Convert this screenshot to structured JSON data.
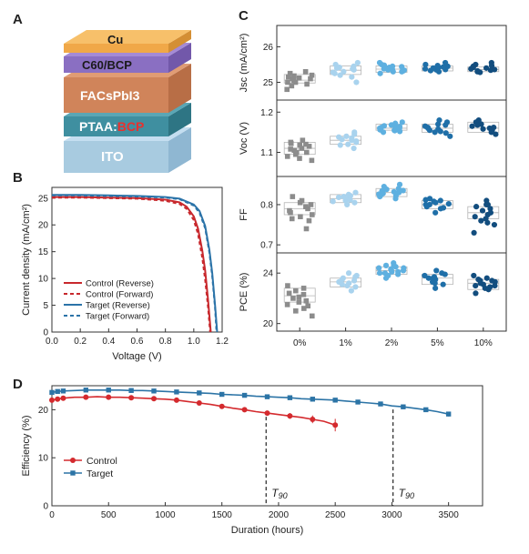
{
  "panels": {
    "a": "A",
    "b": "B",
    "c": "C",
    "d": "D"
  },
  "stack": {
    "layers": [
      "Cu",
      "C60/BCP",
      "FACsPbI3",
      "PTAA:",
      "BCP",
      "ITO"
    ],
    "colors": {
      "cu": "#f0a848",
      "c60": "#8a6fc2",
      "perov": "#d0845a",
      "ptaa": "#3f8fa0",
      "ito": "#a8cbe0"
    }
  },
  "chart_data": [
    {
      "type": "line",
      "panel": "B",
      "xlabel": "Voltage (V)",
      "ylabel": "Current density (mA/cm²)",
      "xlim": [
        0,
        1.2
      ],
      "ylim": [
        0,
        27
      ],
      "xticks": [
        "0.0",
        "0.2",
        "0.4",
        "0.6",
        "0.8",
        "1.0",
        "1.2"
      ],
      "yticks": [
        "0",
        "5",
        "10",
        "15",
        "20",
        "25"
      ],
      "legend_position": "bottom-left",
      "series": [
        {
          "name": "Control (Reverse)",
          "color": "#c8282d",
          "dash": false,
          "x": [
            0,
            0.2,
            0.4,
            0.6,
            0.8,
            0.9,
            0.95,
            1.0,
            1.03,
            1.06,
            1.08,
            1.1,
            1.12
          ],
          "y": [
            25.2,
            25.2,
            25.1,
            25.0,
            24.7,
            24.2,
            23.4,
            21.6,
            19.3,
            15.2,
            11.5,
            6.2,
            0
          ]
        },
        {
          "name": "Control (Forward)",
          "color": "#c8282d",
          "dash": true,
          "x": [
            0,
            0.2,
            0.4,
            0.6,
            0.8,
            0.9,
            0.95,
            1.0,
            1.03,
            1.06,
            1.08,
            1.1,
            1.115
          ],
          "y": [
            25.1,
            25.1,
            25.0,
            24.9,
            24.5,
            23.9,
            23.0,
            20.9,
            18.3,
            13.8,
            9.8,
            4.8,
            0
          ]
        },
        {
          "name": "Target  (Reverse)",
          "color": "#2b73a8",
          "dash": false,
          "x": [
            0,
            0.2,
            0.4,
            0.6,
            0.8,
            0.9,
            1.0,
            1.04,
            1.08,
            1.11,
            1.13,
            1.15,
            1.165
          ],
          "y": [
            25.6,
            25.6,
            25.5,
            25.4,
            25.2,
            24.9,
            23.8,
            22.6,
            19.8,
            15.3,
            11.0,
            5.0,
            0
          ]
        },
        {
          "name": "Target  (Forward)",
          "color": "#2b73a8",
          "dash": true,
          "x": [
            0,
            0.2,
            0.4,
            0.6,
            0.8,
            0.9,
            1.0,
            1.04,
            1.08,
            1.11,
            1.13,
            1.15,
            1.16
          ],
          "y": [
            25.5,
            25.5,
            25.4,
            25.3,
            25.1,
            24.8,
            23.6,
            22.3,
            19.4,
            14.8,
            10.4,
            4.5,
            0
          ]
        }
      ]
    },
    {
      "type": "scatter",
      "panel": "C",
      "categories": [
        "0%",
        "1%",
        "2%",
        "5%",
        "10%"
      ],
      "category_colors": [
        "#8c8c8c",
        "#a9d3ee",
        "#5eb0e0",
        "#1f6fa8",
        "#124d7e"
      ],
      "category_shapes": [
        "square",
        "circle",
        "circle",
        "circle",
        "circle"
      ],
      "rows": [
        {
          "ylabel": "Jsc (mA/cm²)",
          "ylim": [
            24.5,
            26.6
          ],
          "yticks": [
            "25",
            "26"
          ],
          "tickvals": [
            25,
            26
          ],
          "boxes": [
            [
              24.98,
              25.06,
              25.22
            ],
            [
              25.22,
              25.34,
              25.46
            ],
            [
              25.28,
              25.37,
              25.46
            ],
            [
              25.32,
              25.4,
              25.46
            ],
            [
              25.3,
              25.36,
              25.43
            ]
          ],
          "points": [
            [
              24.8,
              24.9,
              25.0,
              25.05,
              25.1,
              25.15,
              25.2,
              25.25,
              25.0,
              25.1,
              25.3,
              24.95,
              25.12,
              25.18
            ],
            [
              25.0,
              25.15,
              25.25,
              25.3,
              25.35,
              25.4,
              25.45,
              25.5,
              25.55,
              25.2,
              25.38,
              25.28,
              25.42
            ],
            [
              25.25,
              25.3,
              25.35,
              25.4,
              25.45,
              25.5,
              25.55,
              25.3,
              25.38,
              25.42,
              25.34,
              25.48,
              25.36,
              25.32,
              25.44,
              25.4
            ],
            [
              25.3,
              25.35,
              25.4,
              25.45,
              25.5,
              25.55,
              25.38,
              25.42,
              25.33,
              25.47,
              25.36,
              25.43
            ],
            [
              25.28,
              25.32,
              25.36,
              25.4,
              25.45,
              25.5,
              25.55,
              25.34,
              25.38,
              25.42,
              25.3,
              25.47
            ]
          ]
        },
        {
          "ylabel": "Voc (V)",
          "ylim": [
            1.04,
            1.23
          ],
          "yticks": [
            "1.1",
            "1.2"
          ],
          "tickvals": [
            1.1,
            1.2
          ],
          "boxes": [
            [
              1.095,
              1.11,
              1.125
            ],
            [
              1.12,
              1.13,
              1.14
            ],
            [
              1.155,
              1.16,
              1.17
            ],
            [
              1.15,
              1.16,
              1.17
            ],
            [
              1.15,
              1.16,
              1.175
            ]
          ],
          "points": [
            [
              1.08,
              1.09,
              1.1,
              1.105,
              1.11,
              1.115,
              1.12,
              1.125,
              1.13,
              1.1,
              1.095,
              1.118,
              1.108,
              1.122,
              1.085
            ],
            [
              1.11,
              1.12,
              1.125,
              1.13,
              1.135,
              1.14,
              1.15,
              1.128,
              1.138,
              1.118,
              1.145,
              1.132
            ],
            [
              1.15,
              1.155,
              1.16,
              1.165,
              1.17,
              1.175,
              1.158,
              1.162,
              1.168,
              1.152,
              1.172,
              1.164,
              1.156,
              1.166,
              1.16,
              1.154
            ],
            [
              1.14,
              1.15,
              1.155,
              1.16,
              1.165,
              1.17,
              1.175,
              1.158,
              1.162,
              1.148,
              1.168,
              1.152,
              1.18
            ],
            [
              1.15,
              1.155,
              1.16,
              1.165,
              1.17,
              1.18,
              1.158,
              1.162,
              1.175,
              1.145,
              1.168
            ]
          ]
        },
        {
          "ylabel": "FF",
          "ylim": [
            0.68,
            0.87
          ],
          "yticks": [
            "0.7",
            "0.8"
          ],
          "tickvals": [
            0.7,
            0.8
          ],
          "boxes": [
            [
              0.775,
              0.79,
              0.805
            ],
            [
              0.805,
              0.815,
              0.825
            ],
            [
              0.82,
              0.83,
              0.84
            ],
            [
              0.79,
              0.8,
              0.81
            ],
            [
              0.765,
              0.78,
              0.795
            ]
          ],
          "points": [
            [
              0.74,
              0.76,
              0.77,
              0.78,
              0.79,
              0.8,
              0.81,
              0.82,
              0.775,
              0.785,
              0.795,
              0.765,
              0.805
            ],
            [
              0.8,
              0.805,
              0.81,
              0.815,
              0.82,
              0.825,
              0.83,
              0.812,
              0.818,
              0.808,
              0.822
            ],
            [
              0.815,
              0.82,
              0.825,
              0.83,
              0.835,
              0.84,
              0.845,
              0.828,
              0.832,
              0.822,
              0.838,
              0.826,
              0.834,
              0.85
            ],
            [
              0.78,
              0.79,
              0.795,
              0.8,
              0.805,
              0.81,
              0.815,
              0.798,
              0.802,
              0.792,
              0.808,
              0.8,
              0.812
            ],
            [
              0.73,
              0.75,
              0.76,
              0.77,
              0.78,
              0.79,
              0.8,
              0.81,
              0.775,
              0.785,
              0.765,
              0.795,
              0.8,
              0.755
            ]
          ]
        },
        {
          "ylabel": "PCE (%)",
          "ylim": [
            19.4,
            25.6
          ],
          "yticks": [
            "20",
            "24"
          ],
          "tickvals": [
            20,
            24
          ],
          "boxes": [
            [
              21.7,
              22.2,
              22.8
            ],
            [
              22.9,
              23.3,
              23.6
            ],
            [
              23.9,
              24.2,
              24.5
            ],
            [
              23.1,
              23.6,
              23.9
            ],
            [
              22.7,
              23.2,
              23.5
            ]
          ],
          "points": [
            [
              20.6,
              21.0,
              21.5,
              21.8,
              22.0,
              22.3,
              22.6,
              23.0,
              21.2,
              22.1,
              22.8,
              21.7,
              22.4,
              21.4
            ],
            [
              22.6,
              23.0,
              23.2,
              23.4,
              23.6,
              23.8,
              24.0,
              23.3,
              23.1,
              23.5,
              22.9,
              23.7
            ],
            [
              23.6,
              23.8,
              24.0,
              24.2,
              24.4,
              24.6,
              24.8,
              24.1,
              24.3,
              23.9,
              24.5,
              24.2,
              24.0,
              24.4,
              24.6,
              24.1
            ],
            [
              22.8,
              23.2,
              23.4,
              23.6,
              23.8,
              24.0,
              24.2,
              23.5,
              23.3,
              23.7,
              23.9,
              23.1,
              23.6
            ],
            [
              22.4,
              22.8,
              23.0,
              23.2,
              23.4,
              23.6,
              23.8,
              23.1,
              22.9,
              23.3,
              23.5,
              22.7,
              23.0,
              23.4
            ]
          ]
        }
      ]
    },
    {
      "type": "line",
      "panel": "D",
      "xlabel": "Duration (hours)",
      "ylabel": "Efficiency (%)",
      "xlim": [
        0,
        3800
      ],
      "ylim": [
        0,
        25
      ],
      "xticks": [
        "0",
        "500",
        "1000",
        "1500",
        "2000",
        "2500",
        "3000",
        "3500"
      ],
      "yticks": [
        "0",
        "10",
        "20"
      ],
      "legend_position": "bottom-left",
      "annotations": [
        {
          "label": "T",
          "sub": "90",
          "x": 1890
        },
        {
          "label": "T",
          "sub": "90",
          "x": 3010
        }
      ],
      "series": [
        {
          "name": "Control",
          "color": "#d42a2e",
          "marker": "circle",
          "x": [
            0,
            50,
            100,
            200,
            300,
            400,
            500,
            600,
            700,
            800,
            900,
            1000,
            1100,
            1200,
            1300,
            1400,
            1500,
            1600,
            1700,
            1800,
            1900,
            2000,
            2100,
            2200,
            2300,
            2400,
            2500
          ],
          "y": [
            22.0,
            22.2,
            22.4,
            22.6,
            22.6,
            22.7,
            22.6,
            22.6,
            22.5,
            22.4,
            22.3,
            22.2,
            22.0,
            21.7,
            21.4,
            21.1,
            20.7,
            20.3,
            20.0,
            19.6,
            19.3,
            19.0,
            18.7,
            18.4,
            18.0,
            17.6,
            16.8
          ],
          "err": [
            0.3,
            0.3,
            0.3,
            0.3,
            0.3,
            0.3,
            0.3,
            0.3,
            0.3,
            0.3,
            0.3,
            0.3,
            0.3,
            0.3,
            0.3,
            0.3,
            0.4,
            0.4,
            0.4,
            0.5,
            0.5,
            0.6,
            0.6,
            0.7,
            0.8,
            0.9,
            1.3
          ]
        },
        {
          "name": "Target",
          "color": "#2c74a6",
          "marker": "square",
          "x": [
            0,
            50,
            100,
            200,
            300,
            400,
            500,
            600,
            700,
            800,
            900,
            1000,
            1100,
            1200,
            1300,
            1400,
            1500,
            1600,
            1700,
            1800,
            1900,
            2000,
            2100,
            2200,
            2300,
            2400,
            2500,
            2600,
            2700,
            2800,
            2900,
            3000,
            3100,
            3200,
            3300,
            3400,
            3500
          ],
          "y": [
            23.6,
            23.8,
            23.9,
            24.0,
            24.1,
            24.1,
            24.1,
            24.1,
            24.0,
            24.0,
            23.9,
            23.8,
            23.7,
            23.6,
            23.5,
            23.4,
            23.2,
            23.1,
            23.0,
            22.8,
            22.7,
            22.6,
            22.5,
            22.3,
            22.2,
            22.1,
            22.0,
            21.8,
            21.6,
            21.4,
            21.2,
            20.8,
            20.6,
            20.3,
            20.0,
            19.6,
            19.1
          ],
          "err": [
            0.2,
            0.2,
            0.2,
            0.2,
            0.2,
            0.2,
            0.2,
            0.2,
            0.2,
            0.2,
            0.2,
            0.2,
            0.2,
            0.2,
            0.2,
            0.2,
            0.2,
            0.2,
            0.2,
            0.2,
            0.2,
            0.2,
            0.2,
            0.2,
            0.2,
            0.2,
            0.3,
            0.3,
            0.3,
            0.3,
            0.3,
            0.4,
            0.4,
            0.4,
            0.4,
            0.5,
            0.5
          ]
        }
      ]
    }
  ]
}
